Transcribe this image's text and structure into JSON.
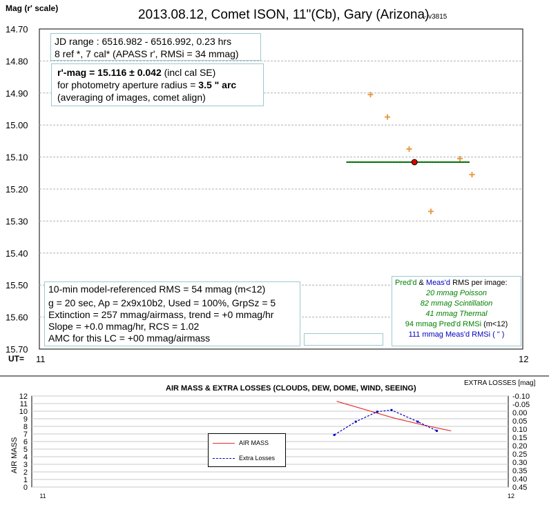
{
  "main": {
    "title": "2013.08.12, Comet ISON, 11\"(Cb), Gary (Arizona)",
    "version": " - v3815",
    "ylabel": "Mag (r' scale)",
    "x_prefix": "UT=",
    "info_jd": [
      "JD range : 6516.982 - 6516.992, 0.23 hrs",
      "8  ref *, 7 cal* (APASS r', RMSi = 34 mmag)"
    ],
    "mag_result_bold": "r'-mag = 15.116 ± 0.042",
    "mag_result_rest": " (incl cal SE)",
    "aperture_prefix": "for photometry aperture radius =  ",
    "aperture_bold": "3.5 \" arc",
    "averaging": "(averaging of images, comet align)",
    "rms_lines": [
      "10-min model-referenced RMS = 54 mmag (m<12)",
      "g = 20 sec, Ap = 2x9x10b2, Used = 100%, GrpSz = 5",
      "Extinction = 257 mmag/airmass, trend = +0 mmag/hr",
      "Slope = +0.0 mmag/hr, RCS = 1.02",
      "AMC for this LC = +00 mmag/airmass"
    ],
    "noise": {
      "head_a": "Pred'd",
      "head_b": " & ",
      "head_c": "Meas'd",
      "head_d": " RMS per image:",
      "poisson": "20 mmag Poisson",
      "scint": "82 mmag Scintillation",
      "thermal": "41 mmag Thermal",
      "pred_a": "94 mmag  Pred'd  RMSi",
      "pred_b": " (m<12)",
      "meas": "111 mmag  Meas'd  RMSi  (    \"    )"
    }
  },
  "chart_data": [
    {
      "type": "scatter",
      "title": "2013.08.12, Comet ISON, 11\"(Cb), Gary (Arizona)",
      "ylabel": "Mag (r' scale)",
      "xlim": [
        11,
        12
      ],
      "ylim": [
        14.7,
        15.7
      ],
      "y_inverted": true,
      "yticks": [
        "14.70",
        "14.80",
        "14.90",
        "15.00",
        "15.10",
        "15.20",
        "15.30",
        "15.40",
        "15.50",
        "15.60",
        "15.70"
      ],
      "xticks": [
        "11",
        "12"
      ],
      "grid": true,
      "points_x": [
        11.685,
        11.72,
        11.765,
        11.81,
        11.87
      ],
      "points_y": [
        14.905,
        14.975,
        15.075,
        15.27,
        15.105
      ],
      "points_extra_x": [
        11.895
      ],
      "points_extra_y": [
        15.155
      ],
      "fit": {
        "x0": 11.635,
        "x1": 11.89,
        "y": 15.116
      },
      "mean_point": {
        "x": 11.776,
        "y": 15.116
      },
      "colors": {
        "points": "#e89b4a",
        "fit": "#008000",
        "mean": "#e00000"
      }
    },
    {
      "type": "line",
      "title": "AIR MASS & EXTRA LOSSES (CLOUDS, DEW, DOME, WIND, SEEING)",
      "ylabel": "AIR MASS",
      "y2label": "EXTRA LOSSES [mag]",
      "xlim": [
        11,
        12
      ],
      "ylim": [
        0,
        12
      ],
      "y2lim": [
        -0.1,
        0.45
      ],
      "yticks": [
        "0",
        "1",
        "2",
        "3",
        "4",
        "5",
        "6",
        "7",
        "8",
        "9",
        "10",
        "11",
        "12"
      ],
      "y2ticks": [
        "-0.10",
        "-0.05",
        "0.00",
        "0.05",
        "0.10",
        "0.15",
        "0.20",
        "0.25",
        "0.30",
        "0.35",
        "0.40",
        "0.45"
      ],
      "xticks": [
        "11",
        "12"
      ],
      "series": [
        {
          "name": "AIR MASS",
          "color": "#e03030",
          "x": [
            11.64,
            11.7,
            11.76,
            11.82,
            11.88
          ],
          "values": [
            11.3,
            10.2,
            9.1,
            8.2,
            7.4
          ]
        },
        {
          "name": "Extra Losses",
          "color": "#0000c0",
          "x": [
            11.635,
            11.68,
            11.725,
            11.755,
            11.81,
            11.85
          ],
          "values": [
            0.135,
            0.055,
            -0.005,
            -0.015,
            0.055,
            0.11
          ]
        }
      ]
    }
  ]
}
